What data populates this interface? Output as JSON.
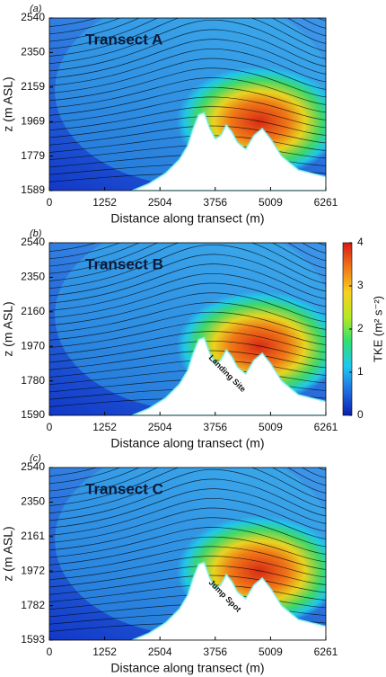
{
  "chart_data": [
    {
      "type": "contour",
      "panel_label": "(a)",
      "title": "Transect A",
      "xlabel": "Distance along transect (m)",
      "ylabel": "z (m ASL)",
      "xlim": [
        0,
        6261
      ],
      "xticks": [
        0,
        1252,
        2504,
        3756,
        5009,
        6261
      ],
      "ylim": [
        1589,
        2540
      ],
      "yticks": [
        1589,
        1779,
        1969,
        2159,
        2350,
        2540
      ]
    },
    {
      "type": "contour",
      "panel_label": "(b)",
      "title": "Transect B",
      "xlabel": "Distance along transect (m)",
      "ylabel": "z (m ASL)",
      "annotation": "Landing Site",
      "xlim": [
        0,
        6261
      ],
      "xticks": [
        0,
        1252,
        2504,
        3756,
        5009,
        6261
      ],
      "ylim": [
        1590,
        2540
      ],
      "yticks": [
        1590,
        1780,
        1970,
        2160,
        2350,
        2540
      ],
      "colorbar": {
        "label": "TKE (m² s⁻²)",
        "lim": [
          0,
          4
        ],
        "ticks": [
          0,
          1,
          2,
          3,
          4
        ],
        "colors": [
          "#0a1fb0",
          "#1f6fe0",
          "#1fc8f0",
          "#30e070",
          "#b8e820",
          "#f8d020",
          "#f07818",
          "#d81818"
        ]
      }
    },
    {
      "type": "contour",
      "panel_label": "(c)",
      "title": "Transect C",
      "xlabel": "Distance along transect (m)",
      "ylabel": "z (m ASL)",
      "annotation": "Jump Spot",
      "xlim": [
        0,
        6261
      ],
      "xticks": [
        0,
        1252,
        2504,
        3756,
        5009,
        6261
      ],
      "ylim": [
        1593,
        2540
      ],
      "yticks": [
        1593,
        1782,
        1972,
        2161,
        2350,
        2540
      ]
    }
  ]
}
